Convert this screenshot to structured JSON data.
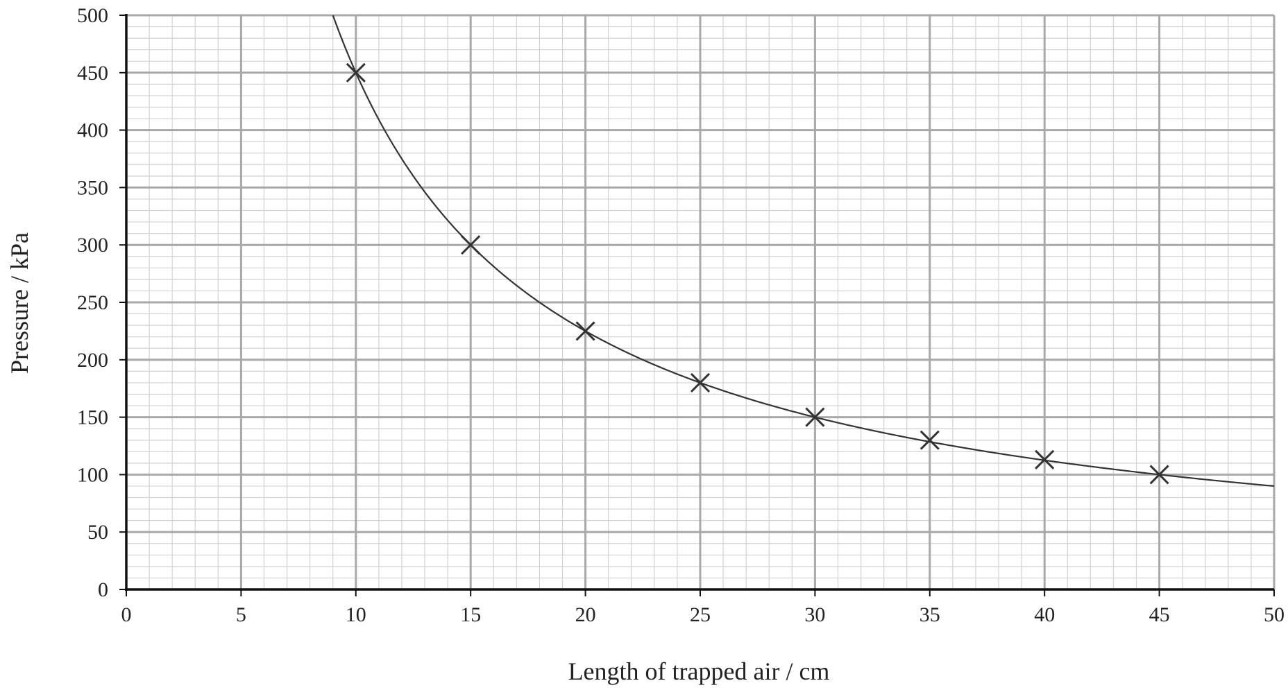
{
  "chart_data": {
    "type": "scatter",
    "title": "",
    "xlabel": "Length of trapped air / cm",
    "ylabel": "Pressure / kPa",
    "xlim": [
      0,
      50
    ],
    "ylim": [
      0,
      500
    ],
    "xticks": [
      "0",
      "5",
      "10",
      "15",
      "20",
      "25",
      "30",
      "35",
      "40",
      "45",
      "50"
    ],
    "yticks": [
      "0",
      "50",
      "100",
      "150",
      "200",
      "250",
      "300",
      "350",
      "400",
      "450",
      "500"
    ],
    "grid": true,
    "marker": "cross",
    "series": [
      {
        "x": [
          10,
          15,
          20,
          25,
          30,
          35,
          40,
          45
        ],
        "y": [
          450,
          300,
          225,
          180,
          150,
          130,
          113,
          100
        ]
      }
    ],
    "fit_curve": {
      "form": "y = k / x",
      "k": 4500,
      "x_range": [
        9,
        50
      ]
    },
    "colors": {
      "grid_major": "#a8a8a8",
      "grid_minor": "#d2d2d2",
      "axis": "#111111",
      "curve": "#333333",
      "marker": "#333333"
    }
  }
}
